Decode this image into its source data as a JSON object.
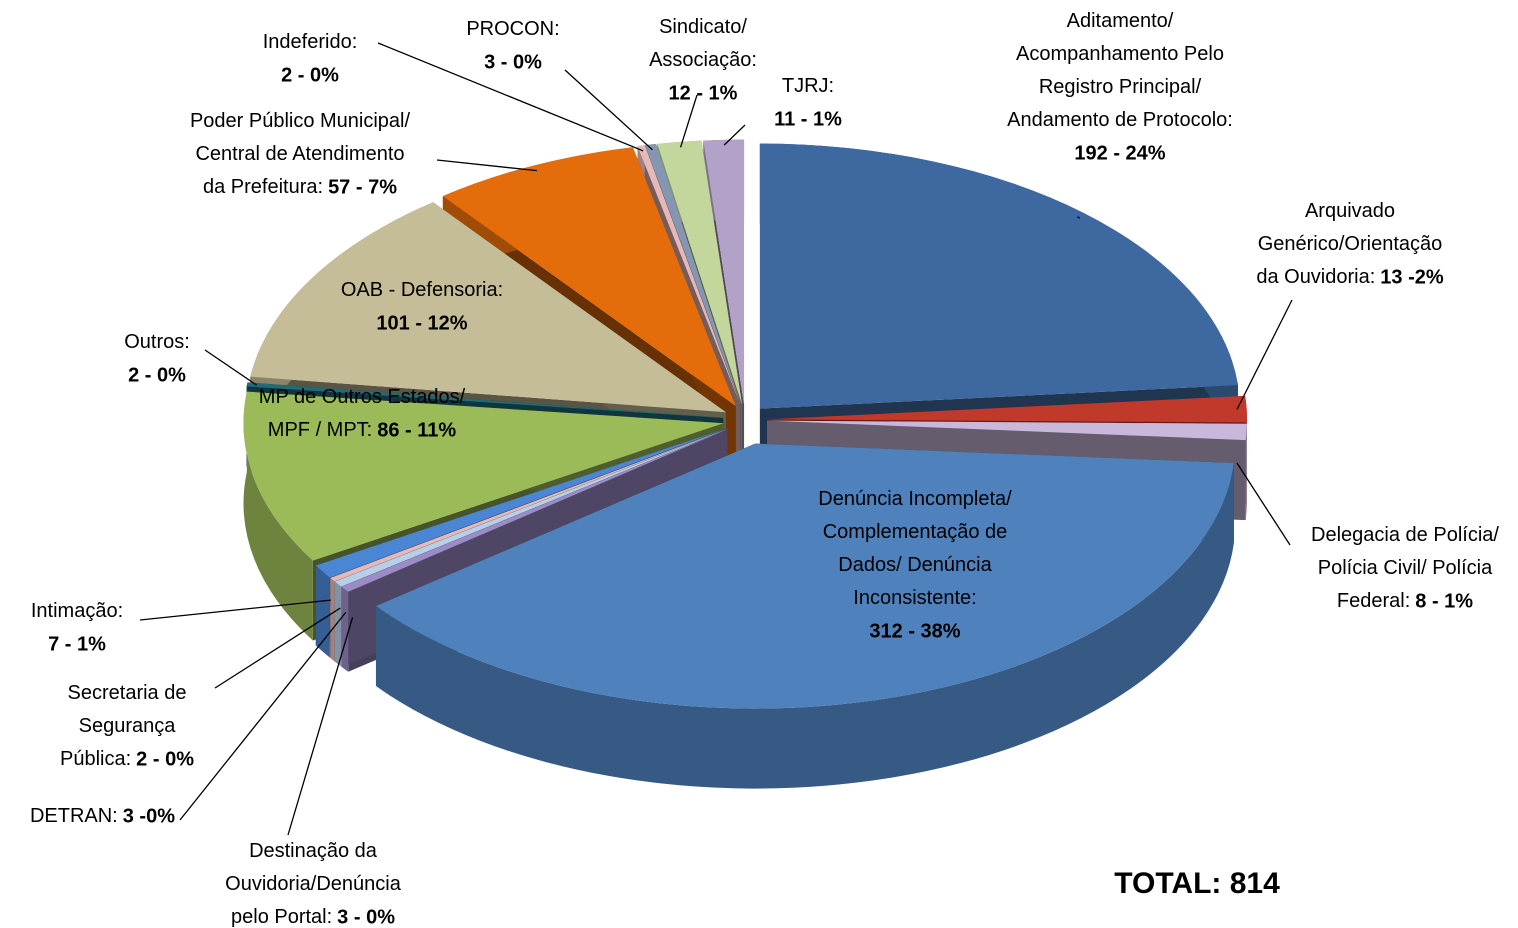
{
  "chart_data": {
    "type": "pie3d",
    "categories": [
      "Aditamento/\nAcompanhamento Pelo\nRegistro Principal/\nAndamento de Protocolo:",
      "Arquivado\nGenérico/Orientação\nda Ouvidoria:",
      "Delegacia de Polícia/\nPolícia Civil/ Polícia\nFederal:",
      "Denúncia Incompleta/\nComplementação de\nDados/ Denúncia\nInconsistente:",
      "Destinação da\nOuvidoria/Denúncia\npelo Portal:",
      "DETRAN:",
      "Secretaria de\nSegurança\nPública:",
      "Intimação:",
      "MP de Outros Estados/\nMPF / MPT:",
      "Outros:",
      "OAB - Defensoria:",
      "Poder Público Municipal/\nCentral de Atendimento\nda Prefeitura:",
      "Indeferido:",
      "PROCON:",
      "Sindicato/\nAssociação:",
      "TJRJ:"
    ],
    "values": [
      192,
      13,
      8,
      312,
      3,
      3,
      2,
      7,
      86,
      2,
      101,
      57,
      2,
      3,
      12,
      11
    ],
    "value_labels": [
      "192 - 24%",
      "13 -2%",
      "8 - 1%",
      "312 - 38%",
      "3 - 0%",
      "3 -0%",
      "2 - 0%",
      "7 - 1%",
      "86 - 11%",
      "2 - 0%",
      "101 - 12%",
      "57 - 7%",
      "2 - 0%",
      "3 - 0%",
      "12 - 1%",
      "11 - 1%"
    ],
    "colors": [
      "#3d69a0",
      "#c0392b",
      "#c9b8dc",
      "#4f81bd",
      "#9b8cc8",
      "#b7d0ea",
      "#e6b9b8",
      "#4a86d4",
      "#9bbb59",
      "#1f6b7a",
      "#c4bd97",
      "#e46c0a",
      "#e6b9b8",
      "#8496b0",
      "#c3d69b",
      "#b3a2c7"
    ],
    "annotation": "TOTAL: 814"
  }
}
